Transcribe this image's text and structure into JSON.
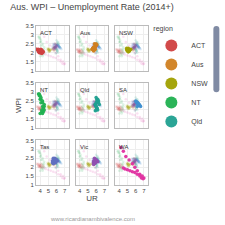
{
  "chart_data": {
    "type": "scatter",
    "title": "Aus. WPI – Unemployment Rate (2014+)",
    "xlabel": "UR",
    "ylabel": "WPI",
    "annotations": [
      "www.ricardianambivalence.com"
    ],
    "legend_title": "region",
    "legend": "right",
    "grid": true,
    "panels": [
      "ACT",
      "Aus",
      "NSW",
      "NT",
      "Qld",
      "SA",
      "Tas",
      "Vic",
      "WA"
    ],
    "xlim": [
      3.5,
      7.5
    ],
    "ylim": [
      1.0,
      3.5
    ],
    "xticks": [
      4,
      5,
      6,
      7
    ],
    "yticks": [
      1,
      1.5,
      2,
      2.5,
      3,
      3.5
    ],
    "series": [
      {
        "name": "ACT",
        "color": "#d04040",
        "x": [
          3.6,
          3.7,
          3.8,
          3.9,
          4.0,
          4.1,
          4.0,
          3.9,
          3.8,
          4.0,
          4.1,
          4.2,
          4.3,
          4.4,
          4.3,
          4.2,
          4.1,
          4.0,
          3.9,
          3.8
        ],
        "values": [
          2.2,
          2.15,
          2.1,
          2.05,
          2.0,
          2.05,
          2.1,
          2.15,
          2.2,
          2.1,
          2.0,
          1.95,
          2.0,
          2.05,
          2.1,
          2.15,
          2.2,
          2.1,
          2.0,
          2.05
        ]
      },
      {
        "name": "Aus",
        "color": "#d08020",
        "x": [
          5.8,
          5.9,
          6.0,
          6.1,
          6.0,
          5.9,
          5.8,
          5.7,
          5.8,
          5.9,
          5.7,
          5.6,
          5.5,
          5.6,
          5.7,
          5.8,
          5.9,
          5.8,
          5.7,
          5.6
        ],
        "values": [
          2.5,
          2.45,
          2.5,
          2.45,
          2.4,
          2.35,
          2.3,
          2.25,
          2.3,
          2.35,
          2.3,
          2.25,
          2.2,
          2.25,
          2.3,
          2.25,
          2.2,
          2.15,
          2.1,
          2.15
        ]
      },
      {
        "name": "NSW",
        "color": "#a0a000",
        "x": [
          5.0,
          5.1,
          5.2,
          5.3,
          5.4,
          5.3,
          5.2,
          5.1,
          5.0,
          4.9,
          5.0,
          5.1,
          5.2,
          5.1,
          5.0,
          4.9,
          5.0,
          5.1,
          5.2,
          5.1
        ],
        "values": [
          2.2,
          2.25,
          2.2,
          2.15,
          2.2,
          2.15,
          2.1,
          2.15,
          2.2,
          2.25,
          2.2,
          2.15,
          2.1,
          2.05,
          2.1,
          2.15,
          2.2,
          2.15,
          2.1,
          2.05
        ]
      },
      {
        "name": "NT",
        "color": "#20b050",
        "x": [
          3.8,
          3.9,
          4.0,
          4.1,
          4.3,
          4.5,
          4.4,
          4.3,
          4.2,
          4.5,
          4.3,
          4.1,
          4.0,
          3.9,
          4.1,
          4.3,
          4.5,
          4.4,
          4.2,
          4.0
        ],
        "values": [
          2.9,
          2.8,
          2.6,
          2.4,
          2.2,
          2.0,
          1.9,
          1.8,
          2.0,
          2.2,
          2.4,
          2.6,
          2.8,
          2.9,
          2.7,
          2.5,
          2.3,
          2.1,
          1.9,
          1.8
        ]
      },
      {
        "name": "Qld",
        "color": "#20a090",
        "x": [
          6.0,
          6.1,
          6.2,
          6.3,
          6.4,
          6.3,
          6.2,
          6.1,
          6.0,
          5.9,
          6.0,
          6.1,
          6.2,
          6.1,
          6.0,
          5.9,
          6.0,
          6.1,
          6.0,
          5.9
        ],
        "values": [
          2.7,
          2.6,
          2.5,
          2.4,
          2.3,
          2.5,
          2.6,
          2.5,
          2.4,
          2.3,
          2.2,
          2.1,
          2.0,
          2.1,
          2.2,
          2.3,
          2.2,
          2.1,
          2.0,
          1.95
        ]
      },
      {
        "name": "SA",
        "color": "#4090d0",
        "x": [
          6.2,
          6.3,
          6.4,
          6.5,
          6.6,
          6.5,
          6.4,
          6.3,
          6.2,
          6.1,
          6.2,
          6.3,
          6.4,
          6.3,
          6.2,
          6.1,
          6.0,
          6.1,
          6.2,
          6.3
        ],
        "values": [
          2.2,
          2.25,
          2.3,
          2.25,
          2.2,
          2.25,
          2.3,
          2.35,
          2.4,
          2.45,
          2.4,
          2.35,
          2.3,
          2.35,
          2.4,
          2.45,
          2.5,
          2.45,
          2.4,
          2.35
        ]
      },
      {
        "name": "Tas",
        "color": "#6070c0",
        "x": [
          5.6,
          5.7,
          5.8,
          5.9,
          6.0,
          6.1,
          6.0,
          5.9,
          5.8,
          5.7,
          5.6,
          5.5,
          5.6,
          5.7,
          5.8,
          5.9,
          5.8,
          5.7,
          5.6,
          5.5
        ],
        "values": [
          2.5,
          2.45,
          2.5,
          2.45,
          2.4,
          2.35,
          2.4,
          2.35,
          2.4,
          2.45,
          2.4,
          2.35,
          2.3,
          2.25,
          2.3,
          2.25,
          2.3,
          2.25,
          2.2,
          2.25
        ]
      },
      {
        "name": "Vic",
        "color": "#9050b0",
        "x": [
          5.8,
          5.9,
          6.0,
          6.1,
          6.2,
          6.1,
          6.0,
          5.9,
          5.8,
          5.7,
          5.8,
          5.9,
          6.0,
          5.9,
          5.8,
          5.7,
          5.8,
          5.9,
          5.8,
          5.7
        ],
        "values": [
          2.5,
          2.45,
          2.4,
          2.35,
          2.3,
          2.35,
          2.4,
          2.35,
          2.3,
          2.25,
          2.3,
          2.35,
          2.3,
          2.25,
          2.3,
          2.35,
          2.3,
          2.25,
          2.2,
          2.15
        ]
      },
      {
        "name": "WA",
        "color": "#e030a0",
        "x": [
          4.2,
          4.5,
          4.8,
          5.2,
          5.6,
          5.9,
          6.2,
          6.5,
          6.8,
          7.0,
          6.9,
          6.7,
          6.5,
          6.2,
          5.9,
          5.6,
          5.3,
          5.0,
          4.7,
          4.5
        ],
        "values": [
          3.1,
          2.9,
          2.6,
          2.4,
          2.2,
          2.0,
          1.8,
          1.6,
          1.5,
          1.4,
          1.35,
          1.4,
          1.5,
          1.6,
          1.7,
          1.75,
          1.8,
          1.85,
          1.9,
          1.95
        ]
      }
    ]
  }
}
